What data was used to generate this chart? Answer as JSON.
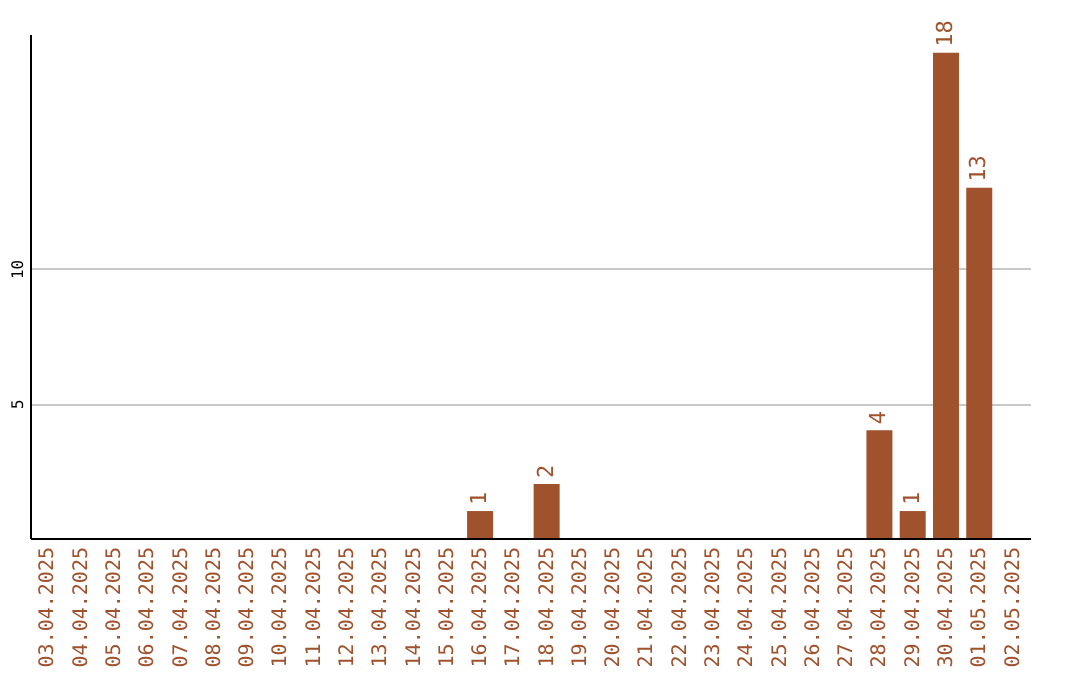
{
  "chart_data": {
    "type": "bar",
    "categories": [
      "03.04.2025",
      "04.04.2025",
      "05.04.2025",
      "06.04.2025",
      "07.04.2025",
      "08.04.2025",
      "09.04.2025",
      "10.04.2025",
      "11.04.2025",
      "12.04.2025",
      "13.04.2025",
      "14.04.2025",
      "15.04.2025",
      "16.04.2025",
      "17.04.2025",
      "18.04.2025",
      "19.04.2025",
      "20.04.2025",
      "21.04.2025",
      "22.04.2025",
      "23.04.2025",
      "24.04.2025",
      "25.04.2025",
      "26.04.2025",
      "27.04.2025",
      "28.04.2025",
      "29.04.2025",
      "30.04.2025",
      "01.05.2025",
      "02.05.2025"
    ],
    "values": [
      0,
      0,
      0,
      0,
      0,
      0,
      0,
      0,
      0,
      0,
      0,
      0,
      0,
      1,
      0,
      2,
      0,
      0,
      0,
      0,
      0,
      0,
      0,
      0,
      0,
      4,
      1,
      18,
      13,
      0
    ],
    "value_labels": [
      null,
      null,
      null,
      null,
      null,
      null,
      null,
      null,
      null,
      null,
      null,
      null,
      null,
      "1",
      null,
      "2",
      null,
      null,
      null,
      null,
      null,
      null,
      null,
      null,
      null,
      "4",
      "1",
      "18",
      "13",
      null
    ],
    "color": "#a0522d",
    "ylim": [
      0,
      18.7
    ],
    "yticks": [
      5,
      10
    ],
    "grid": "y"
  }
}
